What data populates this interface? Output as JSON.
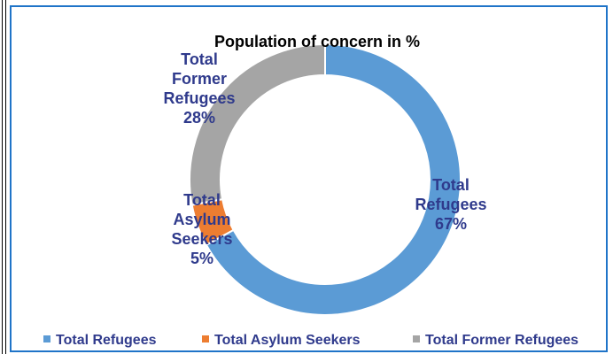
{
  "chart_data": {
    "type": "pie",
    "variant": "donut",
    "title": "Population of concern  in %",
    "series": [
      {
        "name": "Population of concern",
        "slices": [
          {
            "label": "Total Refugees",
            "value": 67,
            "display": "67%",
            "label_lines": [
              "Total",
              "Refugees",
              "67%"
            ],
            "color": "#5b9bd5"
          },
          {
            "label": "Total Asylum Seekers",
            "value": 5,
            "display": "5%",
            "label_lines": [
              "Total",
              "Asylum",
              "Seekers",
              "5%"
            ],
            "color": "#ed7d31"
          },
          {
            "label": "Total Former Refugees",
            "value": 28,
            "display": "28%",
            "label_lines": [
              "Total",
              "Former",
              "Refugees",
              "28%"
            ],
            "color": "#a5a5a5"
          }
        ]
      }
    ],
    "legend": {
      "position": "bottom"
    }
  },
  "colors": {
    "label_text": "#2f3a8c",
    "border": "#1f74c8"
  }
}
